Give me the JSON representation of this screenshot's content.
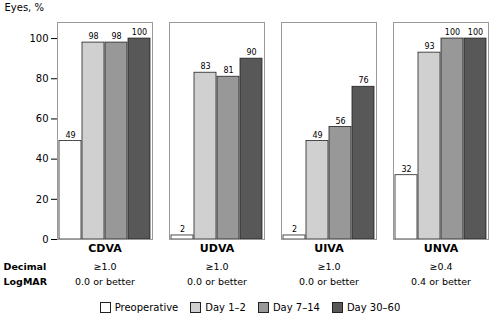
{
  "chart_data": {
    "type": "bar",
    "categories": [
      "CDVA",
      "UDVA",
      "UIVA",
      "UNVA"
    ],
    "series": [
      {
        "name": "Preoperative",
        "color": "#ffffff",
        "values": [
          49,
          2,
          2,
          32
        ]
      },
      {
        "name": "Day 1–2",
        "color": "#d0d0d0",
        "values": [
          98,
          83,
          49,
          93
        ]
      },
      {
        "name": "Day 7–14",
        "color": "#989898",
        "values": [
          98,
          81,
          56,
          100
        ]
      },
      {
        "name": "Day 30–60",
        "color": "#585858",
        "values": [
          100,
          90,
          76,
          100
        ]
      }
    ],
    "ylabel": "Eyes, %",
    "ylim": [
      0,
      108
    ],
    "yticks": [
      0,
      20,
      40,
      60,
      80,
      100
    ],
    "data_labels": true,
    "grid": false,
    "legend": "bottom",
    "annotations": [
      {
        "text": "Decimal",
        "labels": [
          "≥1.0",
          "≥1.0",
          "≥1.0",
          "≥0.4"
        ]
      },
      {
        "text": "LogMAR",
        "labels": [
          "0.0 or better",
          "0.0 or better",
          "0.0 or better",
          "0.4 or better"
        ]
      }
    ]
  }
}
